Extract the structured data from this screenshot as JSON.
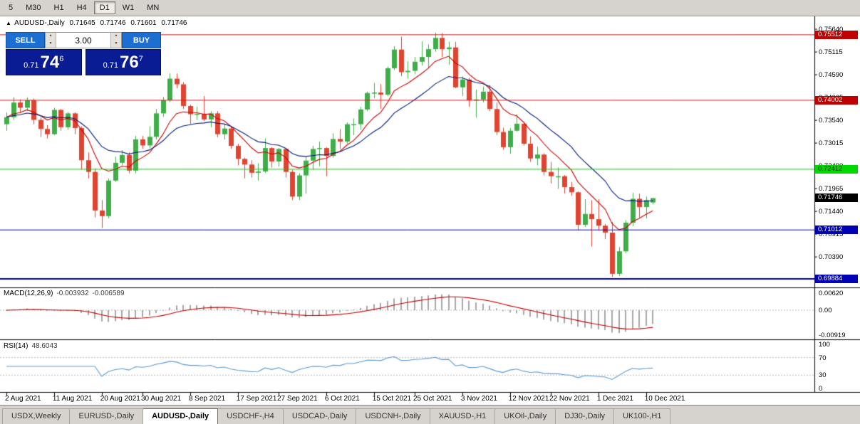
{
  "toolbar": {
    "timeframes": [
      {
        "label": "5",
        "active": false
      },
      {
        "label": "M30",
        "active": false
      },
      {
        "label": "H1",
        "active": false
      },
      {
        "label": "H4",
        "active": false
      },
      {
        "label": "D1",
        "active": true
      },
      {
        "label": "W1",
        "active": false
      },
      {
        "label": "MN",
        "active": false
      }
    ]
  },
  "chart_title": {
    "marker": "▲",
    "symbol": "AUDUSD-,Daily",
    "open": "0.71645",
    "high": "0.71746",
    "low": "0.71601",
    "close": "0.71746"
  },
  "trade_panel": {
    "sell_label": "SELL",
    "buy_label": "BUY",
    "volume": "3.00",
    "spin_up": "▲",
    "spin_down": "▼",
    "sell_price": {
      "prefix": "0.71",
      "big": "74",
      "sup": "6"
    },
    "buy_price": {
      "prefix": "0.71",
      "big": "76",
      "sup": "7"
    }
  },
  "chart_data": {
    "type": "candlestick",
    "title": "AUDUSD-,Daily",
    "up_color": "#3fae49",
    "down_color": "#df4431",
    "ma": [
      {
        "period": 8,
        "color": "#cc0000"
      },
      {
        "period": 17,
        "color": "#001a7a"
      }
    ],
    "price_range": {
      "top": 0.7592,
      "bottom": 0.6972
    },
    "ohlc": [
      [
        0.7345,
        0.7372,
        0.733,
        0.7361
      ],
      [
        0.7361,
        0.7407,
        0.7355,
        0.7395
      ],
      [
        0.7395,
        0.7402,
        0.7371,
        0.7383
      ],
      [
        0.7383,
        0.7407,
        0.7376,
        0.74
      ],
      [
        0.74,
        0.7404,
        0.7345,
        0.7355
      ],
      [
        0.7355,
        0.736,
        0.7316,
        0.7334
      ],
      [
        0.7334,
        0.7343,
        0.7312,
        0.7322
      ],
      [
        0.7322,
        0.7383,
        0.732,
        0.7378
      ],
      [
        0.7378,
        0.738,
        0.733,
        0.7338
      ],
      [
        0.7338,
        0.7373,
        0.7332,
        0.737
      ],
      [
        0.737,
        0.7372,
        0.7322,
        0.7336
      ],
      [
        0.7336,
        0.734,
        0.724,
        0.7262
      ],
      [
        0.7262,
        0.728,
        0.722,
        0.7235
      ],
      [
        0.7235,
        0.7243,
        0.713,
        0.7146
      ],
      [
        0.7146,
        0.717,
        0.7106,
        0.7133
      ],
      [
        0.7133,
        0.722,
        0.7128,
        0.7215
      ],
      [
        0.7215,
        0.727,
        0.7212,
        0.7256
      ],
      [
        0.7256,
        0.7285,
        0.725,
        0.7274
      ],
      [
        0.7274,
        0.728,
        0.7232,
        0.7238
      ],
      [
        0.7238,
        0.7318,
        0.7232,
        0.731
      ],
      [
        0.731,
        0.7318,
        0.7288,
        0.7296
      ],
      [
        0.7296,
        0.734,
        0.729,
        0.7316
      ],
      [
        0.7316,
        0.738,
        0.731,
        0.737
      ],
      [
        0.737,
        0.7408,
        0.7362,
        0.74
      ],
      [
        0.74,
        0.7462,
        0.7396,
        0.745
      ],
      [
        0.745,
        0.7462,
        0.7428,
        0.7437
      ],
      [
        0.7437,
        0.7442,
        0.738,
        0.7387
      ],
      [
        0.7387,
        0.739,
        0.7346,
        0.7368
      ],
      [
        0.7368,
        0.7385,
        0.7355,
        0.7369
      ],
      [
        0.7369,
        0.741,
        0.7352,
        0.7356
      ],
      [
        0.7356,
        0.7375,
        0.7338,
        0.737
      ],
      [
        0.737,
        0.7375,
        0.7315,
        0.7322
      ],
      [
        0.7322,
        0.7345,
        0.731,
        0.7335
      ],
      [
        0.7335,
        0.734,
        0.7288,
        0.7295
      ],
      [
        0.7295,
        0.73,
        0.725,
        0.7265
      ],
      [
        0.7265,
        0.7268,
        0.722,
        0.7252
      ],
      [
        0.7252,
        0.7262,
        0.7222,
        0.7233
      ],
      [
        0.7233,
        0.7255,
        0.7215,
        0.7236
      ],
      [
        0.7236,
        0.7312,
        0.7233,
        0.729
      ],
      [
        0.729,
        0.7292,
        0.7245,
        0.7259
      ],
      [
        0.7259,
        0.729,
        0.7247,
        0.7288
      ],
      [
        0.7288,
        0.729,
        0.7222,
        0.7235
      ],
      [
        0.7235,
        0.724,
        0.717,
        0.7178
      ],
      [
        0.7178,
        0.7232,
        0.717,
        0.7227
      ],
      [
        0.7227,
        0.727,
        0.7185,
        0.7261
      ],
      [
        0.7261,
        0.7295,
        0.724,
        0.7288
      ],
      [
        0.7288,
        0.7305,
        0.7248,
        0.729
      ],
      [
        0.729,
        0.7292,
        0.7225,
        0.7272
      ],
      [
        0.7272,
        0.7324,
        0.7268,
        0.7311
      ],
      [
        0.7311,
        0.7334,
        0.7288,
        0.7305
      ],
      [
        0.7305,
        0.7349,
        0.73,
        0.7345
      ],
      [
        0.7345,
        0.7358,
        0.732,
        0.7345
      ],
      [
        0.7345,
        0.7385,
        0.7332,
        0.7379
      ],
      [
        0.7379,
        0.742,
        0.7375,
        0.7417
      ],
      [
        0.7417,
        0.744,
        0.7405,
        0.7418
      ],
      [
        0.7418,
        0.7438,
        0.738,
        0.7413
      ],
      [
        0.7413,
        0.7478,
        0.741,
        0.7474
      ],
      [
        0.7474,
        0.7525,
        0.747,
        0.7517
      ],
      [
        0.7517,
        0.7547,
        0.7456,
        0.7465
      ],
      [
        0.7465,
        0.749,
        0.745,
        0.7468
      ],
      [
        0.7468,
        0.75,
        0.746,
        0.7489
      ],
      [
        0.7489,
        0.7536,
        0.748,
        0.75
      ],
      [
        0.75,
        0.7529,
        0.7475,
        0.7518
      ],
      [
        0.7518,
        0.7556,
        0.7512,
        0.7544
      ],
      [
        0.7544,
        0.7555,
        0.75,
        0.7518
      ],
      [
        0.7518,
        0.7535,
        0.7482,
        0.7522
      ],
      [
        0.7522,
        0.7535,
        0.7428,
        0.743
      ],
      [
        0.743,
        0.7455,
        0.741,
        0.7448
      ],
      [
        0.7448,
        0.7452,
        0.7385,
        0.74
      ],
      [
        0.74,
        0.7425,
        0.736,
        0.7402
      ],
      [
        0.7402,
        0.7432,
        0.7395,
        0.742
      ],
      [
        0.742,
        0.7435,
        0.7375,
        0.738
      ],
      [
        0.738,
        0.7395,
        0.732,
        0.7327
      ],
      [
        0.7327,
        0.7337,
        0.7286,
        0.7292
      ],
      [
        0.7292,
        0.7336,
        0.7277,
        0.733
      ],
      [
        0.733,
        0.7368,
        0.7328,
        0.7346
      ],
      [
        0.7346,
        0.735,
        0.7296,
        0.73
      ],
      [
        0.73,
        0.7317,
        0.7258,
        0.7266
      ],
      [
        0.7266,
        0.7293,
        0.725,
        0.7275
      ],
      [
        0.7275,
        0.7278,
        0.7227,
        0.7235
      ],
      [
        0.7235,
        0.7258,
        0.7208,
        0.7225
      ],
      [
        0.7225,
        0.7245,
        0.7196,
        0.7225
      ],
      [
        0.7225,
        0.7228,
        0.7185,
        0.72
      ],
      [
        0.72,
        0.7212,
        0.718,
        0.7188
      ],
      [
        0.7188,
        0.719,
        0.71,
        0.7113
      ],
      [
        0.7113,
        0.7172,
        0.7108,
        0.7138
      ],
      [
        0.7138,
        0.717,
        0.7063,
        0.7126
      ],
      [
        0.7126,
        0.7172,
        0.71,
        0.7111
      ],
      [
        0.7111,
        0.7115,
        0.708,
        0.7095
      ],
      [
        0.7095,
        0.712,
        0.6993,
        0.7
      ],
      [
        0.7,
        0.7062,
        0.6995,
        0.7052
      ],
      [
        0.7052,
        0.7124,
        0.7048,
        0.7118
      ],
      [
        0.7118,
        0.7187,
        0.711,
        0.7173
      ],
      [
        0.7173,
        0.7185,
        0.713,
        0.7154
      ],
      [
        0.7154,
        0.7178,
        0.7128,
        0.717
      ],
      [
        0.71645,
        0.71746,
        0.71601,
        0.71746
      ]
    ],
    "x_ticks": [
      {
        "index": 0,
        "label": "2 Aug 2021"
      },
      {
        "index": 7,
        "label": "11 Aug 2021"
      },
      {
        "index": 14,
        "label": "20 Aug 2021"
      },
      {
        "index": 20,
        "label": "30 Aug 2021"
      },
      {
        "index": 27,
        "label": "8 Sep 2021"
      },
      {
        "index": 34,
        "label": "17 Sep 2021"
      },
      {
        "index": 40,
        "label": "27 Sep 2021"
      },
      {
        "index": 47,
        "label": "6 Oct 2021"
      },
      {
        "index": 54,
        "label": "15 Oct 2021"
      },
      {
        "index": 60,
        "label": "25 Oct 2021"
      },
      {
        "index": 67,
        "label": "3 Nov 2021"
      },
      {
        "index": 74,
        "label": "12 Nov 2021"
      },
      {
        "index": 80,
        "label": "22 Nov 2021"
      },
      {
        "index": 87,
        "label": "1 Dec 2021"
      },
      {
        "index": 94,
        "label": "10 Dec 2021"
      }
    ],
    "y_ticks": [
      {
        "price": 0.7564,
        "label": "0.75640"
      },
      {
        "price": 0.75115,
        "label": "0.75115"
      },
      {
        "price": 0.7459,
        "label": "0.74590"
      },
      {
        "price": 0.74065,
        "label": "0.74065"
      },
      {
        "price": 0.7354,
        "label": "0.73540"
      },
      {
        "price": 0.73015,
        "label": "0.73015"
      },
      {
        "price": 0.7249,
        "label": "0.72490"
      },
      {
        "price": 0.71965,
        "label": "0.71965"
      },
      {
        "price": 0.7144,
        "label": "0.71440"
      },
      {
        "price": 0.70915,
        "label": "0.70915"
      },
      {
        "price": 0.7039,
        "label": "0.70390"
      }
    ],
    "levels": [
      {
        "price": 0.75512,
        "label": "0.75512",
        "color": "#c81e1e",
        "bg": "#c00000",
        "fg": "#ffffff",
        "width": 1,
        "line": true
      },
      {
        "price": 0.74002,
        "label": "0.74002",
        "color": "#c81e1e",
        "bg": "#c00000",
        "fg": "#ffffff",
        "width": 1,
        "line": true
      },
      {
        "price": 0.72412,
        "label": "0.72412",
        "color": "#00cc00",
        "bg": "#00d800",
        "fg": "#003300",
        "width": 1,
        "line": true
      },
      {
        "price": 0.71746,
        "label": "0.71746",
        "color": "#000000",
        "bg": "#000000",
        "fg": "#ffffff",
        "width": 1,
        "line": false
      },
      {
        "price": 0.71012,
        "label": "0.71012",
        "color": "#0000b4",
        "bg": "#0000b4",
        "fg": "#ffffff",
        "width": 1,
        "line": true
      },
      {
        "price": 0.69884,
        "label": "0.69884",
        "color": "#0000b4",
        "bg": "#0000b4",
        "fg": "#ffffff",
        "width": 2,
        "line": true
      }
    ]
  },
  "macd": {
    "name": "MACD(12,26,9)",
    "value_main": "-0.003932",
    "value_signal": "-0.006589",
    "hist_color": "#a8a8a8",
    "signal_color": "#c00000",
    "axis": [
      {
        "value": 0.0062,
        "label": "0.00620"
      },
      {
        "value": 0,
        "label": "0.00"
      },
      {
        "value": -0.00919,
        "label": "-0.00919"
      }
    ]
  },
  "rsi": {
    "name": "RSI(14)",
    "value": "48.6043",
    "line_color": "#5b9bd5",
    "levels": [
      70,
      30
    ],
    "axis": [
      {
        "value": 100,
        "label": "100"
      },
      {
        "value": 70,
        "label": "70"
      },
      {
        "value": 30,
        "label": "30"
      },
      {
        "value": 0,
        "label": "0"
      }
    ]
  },
  "tabs": {
    "active_index": 2,
    "items": [
      "USDX,Weekly",
      "EURUSD-,Daily",
      "AUDUSD-,Daily",
      "USDCHF-,H4",
      "USDCAD-,Daily",
      "USDCNH-,Daily",
      "XAUUSD-,H1",
      "UKOil-,Daily",
      "DJ30-,Daily",
      "UK100-,H1"
    ]
  }
}
